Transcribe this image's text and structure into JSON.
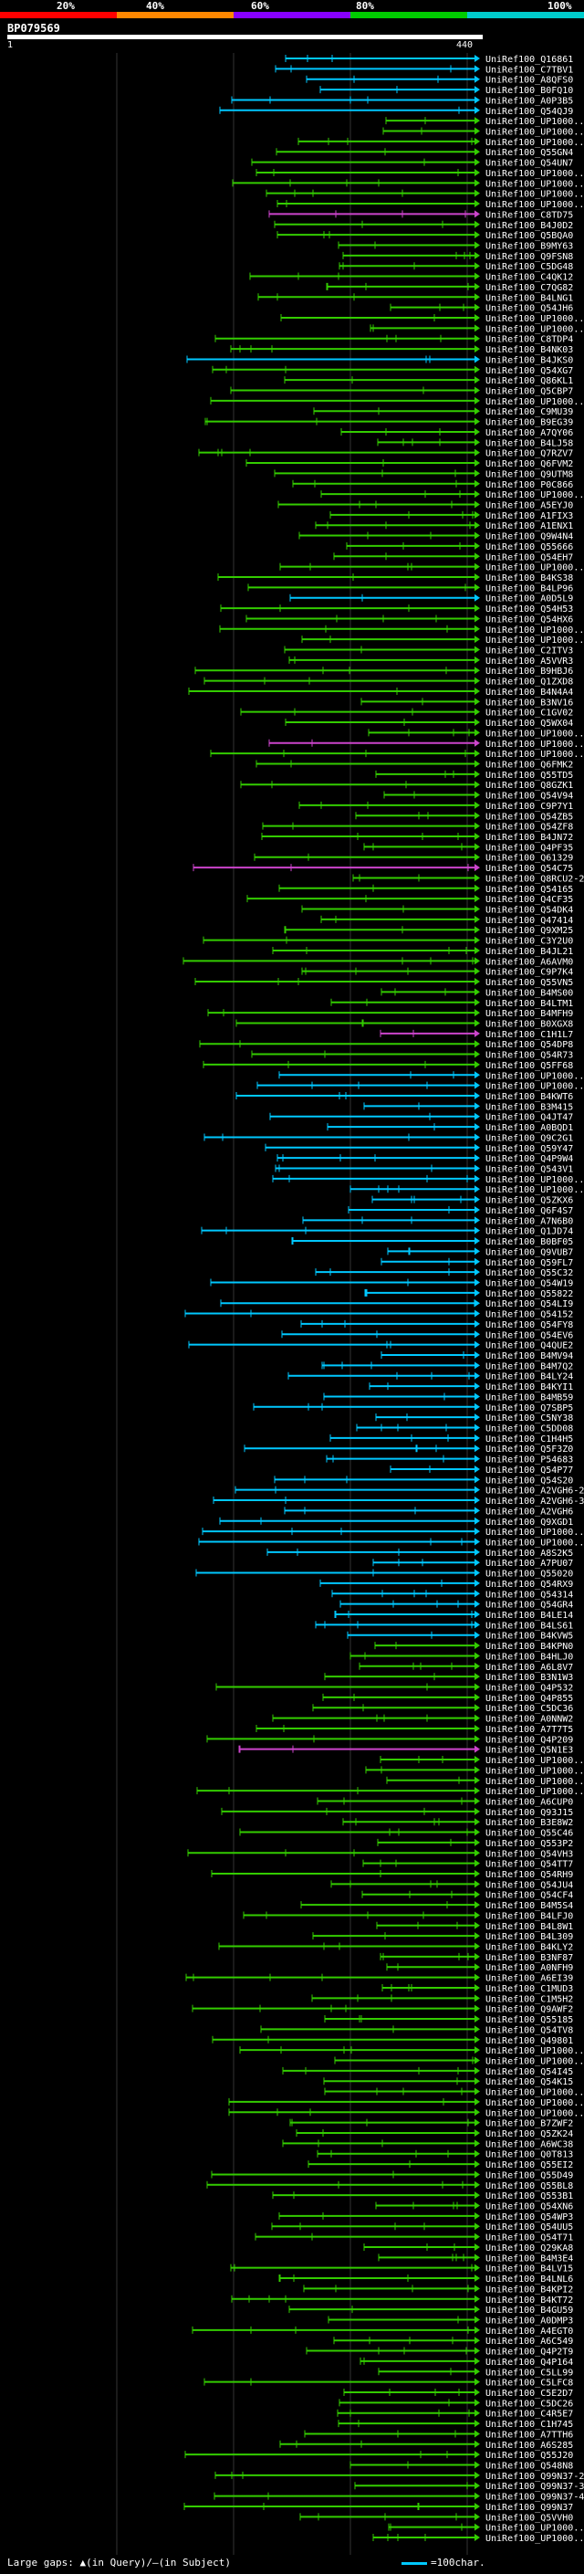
{
  "scale": {
    "labels": [
      "20%",
      "40%",
      "60%",
      "80%",
      "100%"
    ],
    "colors": [
      "#ff0000",
      "#ff8800",
      "#8800ff",
      "#00cc00",
      "#00cccc"
    ]
  },
  "query": {
    "id": "BP079569",
    "start": "1",
    "end": "440"
  },
  "footer": {
    "gaps_label": "Large gaps: ▲(in Query)/–(in Subject)",
    "legend_label": "=100char."
  },
  "hits": [
    {
      "id": "UniRef100_Q16861",
      "color": "#00c8ff"
    },
    {
      "id": "UniRef100_C7TBV1",
      "color": "#00c8ff"
    },
    {
      "id": "UniRef100_A8QFS0",
      "color": "#00c8ff"
    },
    {
      "id": "UniRef100_B0FQ10",
      "color": "#00c8ff"
    },
    {
      "id": "UniRef100_A0P3B5",
      "color": "#00c8ff"
    },
    {
      "id": "UniRef100_Q54QJ9",
      "color": "#00c8ff"
    },
    {
      "id": "UniRef100_UP1000...",
      "color": "#33cc00"
    },
    {
      "id": "UniRef100_UP1000...",
      "color": "#33cc00"
    },
    {
      "id": "UniRef100_UP1000...",
      "color": "#33cc00"
    },
    {
      "id": "UniRef100_Q55GN4",
      "color": "#33cc00"
    },
    {
      "id": "UniRef100_Q54UN7",
      "color": "#33cc00"
    },
    {
      "id": "UniRef100_UP1000...",
      "color": "#33cc00"
    },
    {
      "id": "UniRef100_UP1000...",
      "color": "#33cc00"
    },
    {
      "id": "UniRef100_UP1000...",
      "color": "#33cc00"
    },
    {
      "id": "UniRef100_UP1000...",
      "color": "#33cc00"
    },
    {
      "id": "UniRef100_C8TD75",
      "color": "#cc44cc"
    },
    {
      "id": "UniRef100_B4J0D2",
      "color": "#33cc00"
    },
    {
      "id": "UniRef100_Q5BQA0",
      "color": "#33cc00"
    },
    {
      "id": "UniRef100_B9MY63",
      "color": "#33cc00"
    },
    {
      "id": "UniRef100_Q9FSN8",
      "color": "#33cc00"
    },
    {
      "id": "UniRef100_C5DG48",
      "color": "#33cc00"
    },
    {
      "id": "UniRef100_C4QK12",
      "color": "#33cc00"
    },
    {
      "id": "UniRef100_C7QG82",
      "color": "#33cc00"
    },
    {
      "id": "UniRef100_B4LNG1",
      "color": "#33cc00"
    },
    {
      "id": "UniRef100_Q54JH6",
      "color": "#33cc00"
    },
    {
      "id": "UniRef100_UP1000...",
      "color": "#33cc00"
    },
    {
      "id": "UniRef100_UP1000...",
      "color": "#33cc00"
    },
    {
      "id": "UniRef100_C8TDP4",
      "color": "#33cc00"
    },
    {
      "id": "UniRef100_B4NK03",
      "color": "#33cc00"
    },
    {
      "id": "UniRef100_B4JKS0",
      "color": "#00c8ff"
    },
    {
      "id": "UniRef100_Q54XG7",
      "color": "#33cc00"
    },
    {
      "id": "UniRef100_Q86KL1",
      "color": "#33cc00"
    },
    {
      "id": "UniRef100_Q5CBP7",
      "color": "#33cc00"
    },
    {
      "id": "UniRef100_UP1000...",
      "color": "#33cc00"
    },
    {
      "id": "UniRef100_C9MU39",
      "color": "#33cc00"
    },
    {
      "id": "UniRef100_B9EG39",
      "color": "#33cc00"
    },
    {
      "id": "UniRef100_A7QY06",
      "color": "#33cc00"
    },
    {
      "id": "UniRef100_B4LJ58",
      "color": "#33cc00"
    },
    {
      "id": "UniRef100_Q7RZV7",
      "color": "#33cc00"
    },
    {
      "id": "UniRef100_Q6FVM2",
      "color": "#33cc00"
    },
    {
      "id": "UniRef100_Q9UTM8",
      "color": "#33cc00"
    },
    {
      "id": "UniRef100_P0C866",
      "color": "#33cc00"
    },
    {
      "id": "UniRef100_UP1000...",
      "color": "#33cc00"
    },
    {
      "id": "UniRef100_A5EYJ0",
      "color": "#33cc00"
    },
    {
      "id": "UniRef100_A1FIX3",
      "color": "#33cc00"
    },
    {
      "id": "UniRef100_A1ENX1",
      "color": "#33cc00"
    },
    {
      "id": "UniRef100_Q9W4N4",
      "color": "#33cc00"
    },
    {
      "id": "UniRef100_Q55666",
      "color": "#33cc00"
    },
    {
      "id": "UniRef100_Q54EH7",
      "color": "#33cc00"
    },
    {
      "id": "UniRef100_UP1000...",
      "color": "#33cc00"
    },
    {
      "id": "UniRef100_B4KS38",
      "color": "#33cc00"
    },
    {
      "id": "UniRef100_B4LP96",
      "color": "#33cc00"
    },
    {
      "id": "UniRef100_A0D5L9",
      "color": "#00c8ff"
    },
    {
      "id": "UniRef100_Q54H53",
      "color": "#33cc00"
    },
    {
      "id": "UniRef100_Q54HX6",
      "color": "#33cc00"
    },
    {
      "id": "UniRef100_UP1000...",
      "color": "#33cc00"
    },
    {
      "id": "UniRef100_UP1000...",
      "color": "#33cc00"
    },
    {
      "id": "UniRef100_C2ITV3",
      "color": "#33cc00"
    },
    {
      "id": "UniRef100_A5VVR3",
      "color": "#33cc00"
    },
    {
      "id": "UniRef100_B9HBJ6",
      "color": "#33cc00"
    },
    {
      "id": "UniRef100_Q1ZXD8",
      "color": "#33cc00"
    },
    {
      "id": "UniRef100_B4N4A4",
      "color": "#33cc00"
    },
    {
      "id": "UniRef100_B3NV16",
      "color": "#33cc00"
    },
    {
      "id": "UniRef100_C1GV02",
      "color": "#33cc00"
    },
    {
      "id": "UniRef100_Q5WX04",
      "color": "#33cc00"
    },
    {
      "id": "UniRef100_UP1000...",
      "color": "#33cc00"
    },
    {
      "id": "UniRef100_UP1000...",
      "color": "#cc44cc"
    },
    {
      "id": "UniRef100_UP1000...",
      "color": "#33cc00"
    },
    {
      "id": "UniRef100_Q6FMK2",
      "color": "#33cc00"
    },
    {
      "id": "UniRef100_Q55TD5",
      "color": "#33cc00"
    },
    {
      "id": "UniRef100_Q8GZK1",
      "color": "#33cc00"
    },
    {
      "id": "UniRef100_Q54V94",
      "color": "#33cc00"
    },
    {
      "id": "UniRef100_C9P7Y1",
      "color": "#33cc00"
    },
    {
      "id": "UniRef100_Q54ZB5",
      "color": "#33cc00"
    },
    {
      "id": "UniRef100_Q54ZF8",
      "color": "#33cc00"
    },
    {
      "id": "UniRef100_B4JN72",
      "color": "#33cc00"
    },
    {
      "id": "UniRef100_Q4PF35",
      "color": "#33cc00"
    },
    {
      "id": "UniRef100_Q61329",
      "color": "#33cc00"
    },
    {
      "id": "UniRef100_Q54C75",
      "color": "#cc44cc"
    },
    {
      "id": "UniRef100_Q8RCU2-2",
      "color": "#33cc00"
    },
    {
      "id": "UniRef100_Q54165",
      "color": "#33cc00"
    },
    {
      "id": "UniRef100_Q4CF35",
      "color": "#33cc00"
    },
    {
      "id": "UniRef100_Q54DK4",
      "color": "#33cc00"
    },
    {
      "id": "UniRef100_Q47414",
      "color": "#33cc00"
    },
    {
      "id": "UniRef100_Q9XM25",
      "color": "#33cc00"
    },
    {
      "id": "UniRef100_C3Y2U0",
      "color": "#33cc00"
    },
    {
      "id": "UniRef100_B4JL21",
      "color": "#33cc00"
    },
    {
      "id": "UniRef100_A6AVM0",
      "color": "#33cc00"
    },
    {
      "id": "UniRef100_C9P7K4",
      "color": "#33cc00"
    },
    {
      "id": "UniRef100_Q55VN5",
      "color": "#33cc00"
    },
    {
      "id": "UniRef100_B4MS00",
      "color": "#33cc00"
    },
    {
      "id": "UniRef100_B4LTM1",
      "color": "#33cc00"
    },
    {
      "id": "UniRef100_B4MFH9",
      "color": "#33cc00"
    },
    {
      "id": "UniRef100_B0XGX8",
      "color": "#33cc00"
    },
    {
      "id": "UniRef100_C1H1L7",
      "color": "#cc44cc"
    },
    {
      "id": "UniRef100_Q54DP8",
      "color": "#33cc00"
    },
    {
      "id": "UniRef100_Q54R73",
      "color": "#33cc00"
    },
    {
      "id": "UniRef100_Q5FF68",
      "color": "#33cc00"
    },
    {
      "id": "UniRef100_UP1000...",
      "color": "#00c8ff"
    },
    {
      "id": "UniRef100_UP1000...",
      "color": "#00c8ff"
    },
    {
      "id": "UniRef100_B4KWT6",
      "color": "#00c8ff"
    },
    {
      "id": "UniRef100_B3M415",
      "color": "#00c8ff"
    },
    {
      "id": "UniRef100_Q4JT47",
      "color": "#00c8ff"
    },
    {
      "id": "UniRef100_A0BQD1",
      "color": "#00c8ff"
    },
    {
      "id": "UniRef100_Q9C2G1",
      "color": "#00c8ff"
    },
    {
      "id": "UniRef100_Q59Y47",
      "color": "#00c8ff"
    },
    {
      "id": "UniRef100_Q4P9W4",
      "color": "#00c8ff"
    },
    {
      "id": "UniRef100_Q543V1",
      "color": "#00c8ff"
    },
    {
      "id": "UniRef100_UP1000...",
      "color": "#00c8ff"
    },
    {
      "id": "UniRef100_UP1000...",
      "color": "#00c8ff"
    },
    {
      "id": "UniRef100_Q5ZKX6",
      "color": "#00c8ff"
    },
    {
      "id": "UniRef100_Q6F4S7",
      "color": "#00c8ff"
    },
    {
      "id": "UniRef100_A7N6B0",
      "color": "#00c8ff"
    },
    {
      "id": "UniRef100_Q1JD74",
      "color": "#00c8ff"
    },
    {
      "id": "UniRef100_B0BF05",
      "color": "#00c8ff"
    },
    {
      "id": "UniRef100_Q9VUB7",
      "color": "#00c8ff"
    },
    {
      "id": "UniRef100_Q59FL7",
      "color": "#00c8ff"
    },
    {
      "id": "UniRef100_Q55C32",
      "color": "#00c8ff"
    },
    {
      "id": "UniRef100_Q54W19",
      "color": "#00c8ff"
    },
    {
      "id": "UniRef100_Q55822",
      "color": "#00c8ff"
    },
    {
      "id": "UniRef100_Q54LI9",
      "color": "#00c8ff"
    },
    {
      "id": "UniRef100_Q54152",
      "color": "#00c8ff"
    },
    {
      "id": "UniRef100_Q54FY8",
      "color": "#00c8ff"
    },
    {
      "id": "UniRef100_Q54EV6",
      "color": "#00c8ff"
    },
    {
      "id": "UniRef100_Q4QUE2",
      "color": "#00c8ff"
    },
    {
      "id": "UniRef100_B4MV94",
      "color": "#00c8ff"
    },
    {
      "id": "UniRef100_B4M7Q2",
      "color": "#00c8ff"
    },
    {
      "id": "UniRef100_B4LY24",
      "color": "#00c8ff"
    },
    {
      "id": "UniRef100_B4KYI1",
      "color": "#00c8ff"
    },
    {
      "id": "UniRef100_B4MB59",
      "color": "#00c8ff"
    },
    {
      "id": "UniRef100_Q7SBP5",
      "color": "#00c8ff"
    },
    {
      "id": "UniRef100_C5NY38",
      "color": "#00c8ff"
    },
    {
      "id": "UniRef100_C5DD08",
      "color": "#00c8ff"
    },
    {
      "id": "UniRef100_C1H4H5",
      "color": "#00c8ff"
    },
    {
      "id": "UniRef100_Q5F3Z0",
      "color": "#00c8ff"
    },
    {
      "id": "UniRef100_P54683",
      "color": "#00c8ff"
    },
    {
      "id": "UniRef100_Q54P77",
      "color": "#00c8ff"
    },
    {
      "id": "UniRef100_Q54S20",
      "color": "#00c8ff"
    },
    {
      "id": "UniRef100_A2VGH6-2",
      "color": "#00c8ff"
    },
    {
      "id": "UniRef100_A2VGH6-3",
      "color": "#00c8ff"
    },
    {
      "id": "UniRef100_A2VGH6",
      "color": "#00c8ff"
    },
    {
      "id": "UniRef100_Q9XGD1",
      "color": "#00c8ff"
    },
    {
      "id": "UniRef100_UP1000...",
      "color": "#00c8ff"
    },
    {
      "id": "UniRef100_UP1000...",
      "color": "#00c8ff"
    },
    {
      "id": "UniRef100_A8S2K5",
      "color": "#00c8ff"
    },
    {
      "id": "UniRef100_A7PU07",
      "color": "#00c8ff"
    },
    {
      "id": "UniRef100_Q55020",
      "color": "#00c8ff"
    },
    {
      "id": "UniRef100_Q54RX9",
      "color": "#00c8ff"
    },
    {
      "id": "UniRef100_Q54314",
      "color": "#00c8ff"
    },
    {
      "id": "UniRef100_Q54GR4",
      "color": "#00c8ff"
    },
    {
      "id": "UniRef100_B4LE14",
      "color": "#00c8ff"
    },
    {
      "id": "UniRef100_B4LS61",
      "color": "#00c8ff"
    },
    {
      "id": "UniRef100_B4KVW5",
      "color": "#00c8ff"
    },
    {
      "id": "UniRef100_B4KPN0",
      "color": "#33cc00"
    },
    {
      "id": "UniRef100_B4HLJ0",
      "color": "#33cc00"
    },
    {
      "id": "UniRef100_A6L8V7",
      "color": "#33cc00"
    },
    {
      "id": "UniRef100_B3N1W3",
      "color": "#33cc00"
    },
    {
      "id": "UniRef100_Q4P532",
      "color": "#33cc00"
    },
    {
      "id": "UniRef100_Q4P855",
      "color": "#33cc00"
    },
    {
      "id": "UniRef100_C5DC36",
      "color": "#33cc00"
    },
    {
      "id": "UniRef100_A0NNW2",
      "color": "#33cc00"
    },
    {
      "id": "UniRef100_A7T7T5",
      "color": "#33cc00"
    },
    {
      "id": "UniRef100_Q4P209",
      "color": "#33cc00"
    },
    {
      "id": "UniRef100_Q5N1E3",
      "color": "#cc44cc"
    },
    {
      "id": "UniRef100_UP1000...",
      "color": "#33cc00"
    },
    {
      "id": "UniRef100_UP1000...",
      "color": "#33cc00"
    },
    {
      "id": "UniRef100_UP1000...",
      "color": "#33cc00"
    },
    {
      "id": "UniRef100_UP1000...",
      "color": "#33cc00"
    },
    {
      "id": "UniRef100_A6CUP0",
      "color": "#33cc00"
    },
    {
      "id": "UniRef100_Q93J15",
      "color": "#33cc00"
    },
    {
      "id": "UniRef100_B3E8W2",
      "color": "#33cc00"
    },
    {
      "id": "UniRef100_Q55C46",
      "color": "#33cc00"
    },
    {
      "id": "UniRef100_Q553P2",
      "color": "#33cc00"
    },
    {
      "id": "UniRef100_Q54VH3",
      "color": "#33cc00"
    },
    {
      "id": "UniRef100_Q54TT7",
      "color": "#33cc00"
    },
    {
      "id": "UniRef100_Q54RH9",
      "color": "#33cc00"
    },
    {
      "id": "UniRef100_Q54JU4",
      "color": "#33cc00"
    },
    {
      "id": "UniRef100_Q54CF4",
      "color": "#33cc00"
    },
    {
      "id": "UniRef100_B4M5S4",
      "color": "#33cc00"
    },
    {
      "id": "UniRef100_B4LFJ0",
      "color": "#33cc00"
    },
    {
      "id": "UniRef100_B4L8W1",
      "color": "#33cc00"
    },
    {
      "id": "UniRef100_B4L309",
      "color": "#33cc00"
    },
    {
      "id": "UniRef100_B4KLY2",
      "color": "#33cc00"
    },
    {
      "id": "UniRef100_B3NF87",
      "color": "#33cc00"
    },
    {
      "id": "UniRef100_A0NFH9",
      "color": "#33cc00"
    },
    {
      "id": "UniRef100_A6EI39",
      "color": "#33cc00"
    },
    {
      "id": "UniRef100_C1MUD3",
      "color": "#33cc00"
    },
    {
      "id": "UniRef100_C1M5H2",
      "color": "#33cc00"
    },
    {
      "id": "UniRef100_Q9AWF2",
      "color": "#33cc00"
    },
    {
      "id": "UniRef100_Q55185",
      "color": "#33cc00"
    },
    {
      "id": "UniRef100_Q54TV8",
      "color": "#33cc00"
    },
    {
      "id": "UniRef100_Q49801",
      "color": "#33cc00"
    },
    {
      "id": "UniRef100_UP1000...",
      "color": "#33cc00"
    },
    {
      "id": "UniRef100_UP1000...",
      "color": "#33cc00"
    },
    {
      "id": "UniRef100_Q54I45",
      "color": "#33cc00"
    },
    {
      "id": "UniRef100_Q54K15",
      "color": "#33cc00"
    },
    {
      "id": "UniRef100_UP1000...",
      "color": "#33cc00"
    },
    {
      "id": "UniRef100_UP1000...",
      "color": "#33cc00"
    },
    {
      "id": "UniRef100_UP1000...",
      "color": "#33cc00"
    },
    {
      "id": "UniRef100_B7ZWF2",
      "color": "#33cc00"
    },
    {
      "id": "UniRef100_Q5ZK24",
      "color": "#33cc00"
    },
    {
      "id": "UniRef100_A6WC38",
      "color": "#33cc00"
    },
    {
      "id": "UniRef100_Q0T813",
      "color": "#33cc00"
    },
    {
      "id": "UniRef100_Q55EI2",
      "color": "#33cc00"
    },
    {
      "id": "UniRef100_Q55D49",
      "color": "#33cc00"
    },
    {
      "id": "UniRef100_Q55BL8",
      "color": "#33cc00"
    },
    {
      "id": "UniRef100_Q553B1",
      "color": "#33cc00"
    },
    {
      "id": "UniRef100_Q54XN6",
      "color": "#33cc00"
    },
    {
      "id": "UniRef100_Q54WP3",
      "color": "#33cc00"
    },
    {
      "id": "UniRef100_Q54UU5",
      "color": "#33cc00"
    },
    {
      "id": "UniRef100_Q54T71",
      "color": "#33cc00"
    },
    {
      "id": "UniRef100_Q29KA8",
      "color": "#33cc00"
    },
    {
      "id": "UniRef100_B4M3E4",
      "color": "#33cc00"
    },
    {
      "id": "UniRef100_B4LV15",
      "color": "#33cc00"
    },
    {
      "id": "UniRef100_B4LNL6",
      "color": "#33cc00"
    },
    {
      "id": "UniRef100_B4KPI2",
      "color": "#33cc00"
    },
    {
      "id": "UniRef100_B4KT72",
      "color": "#33cc00"
    },
    {
      "id": "UniRef100_B4GU59",
      "color": "#33cc00"
    },
    {
      "id": "UniRef100_A0DMP3",
      "color": "#33cc00"
    },
    {
      "id": "UniRef100_A4EGT0",
      "color": "#33cc00"
    },
    {
      "id": "UniRef100_A6C549",
      "color": "#33cc00"
    },
    {
      "id": "UniRef100_Q4P2T9",
      "color": "#33cc00"
    },
    {
      "id": "UniRef100_Q4P164",
      "color": "#33cc00"
    },
    {
      "id": "UniRef100_C5LL99",
      "color": "#33cc00"
    },
    {
      "id": "UniRef100_C5LFC8",
      "color": "#33cc00"
    },
    {
      "id": "UniRef100_C5E2D7",
      "color": "#33cc00"
    },
    {
      "id": "UniRef100_C5DC26",
      "color": "#33cc00"
    },
    {
      "id": "UniRef100_C4R5E7",
      "color": "#33cc00"
    },
    {
      "id": "UniRef100_C1H745",
      "color": "#33cc00"
    },
    {
      "id": "UniRef100_A7TTH6",
      "color": "#33cc00"
    },
    {
      "id": "UniRef100_A6S285",
      "color": "#33cc00"
    },
    {
      "id": "UniRef100_Q55J20",
      "color": "#33cc00"
    },
    {
      "id": "UniRef100_Q548N8",
      "color": "#33cc00"
    },
    {
      "id": "UniRef100_Q99N37-2",
      "color": "#33cc00"
    },
    {
      "id": "UniRef100_Q99N37-3",
      "color": "#33cc00"
    },
    {
      "id": "UniRef100_Q99N37-4",
      "color": "#33cc00"
    },
    {
      "id": "UniRef100_Q99N37",
      "color": "#33cc00"
    },
    {
      "id": "UniRef100_Q5VVH0",
      "color": "#33cc00"
    },
    {
      "id": "UniRef100_UP1000...",
      "color": "#33cc00"
    },
    {
      "id": "UniRef100_UP1000...",
      "color": "#33cc00"
    }
  ]
}
